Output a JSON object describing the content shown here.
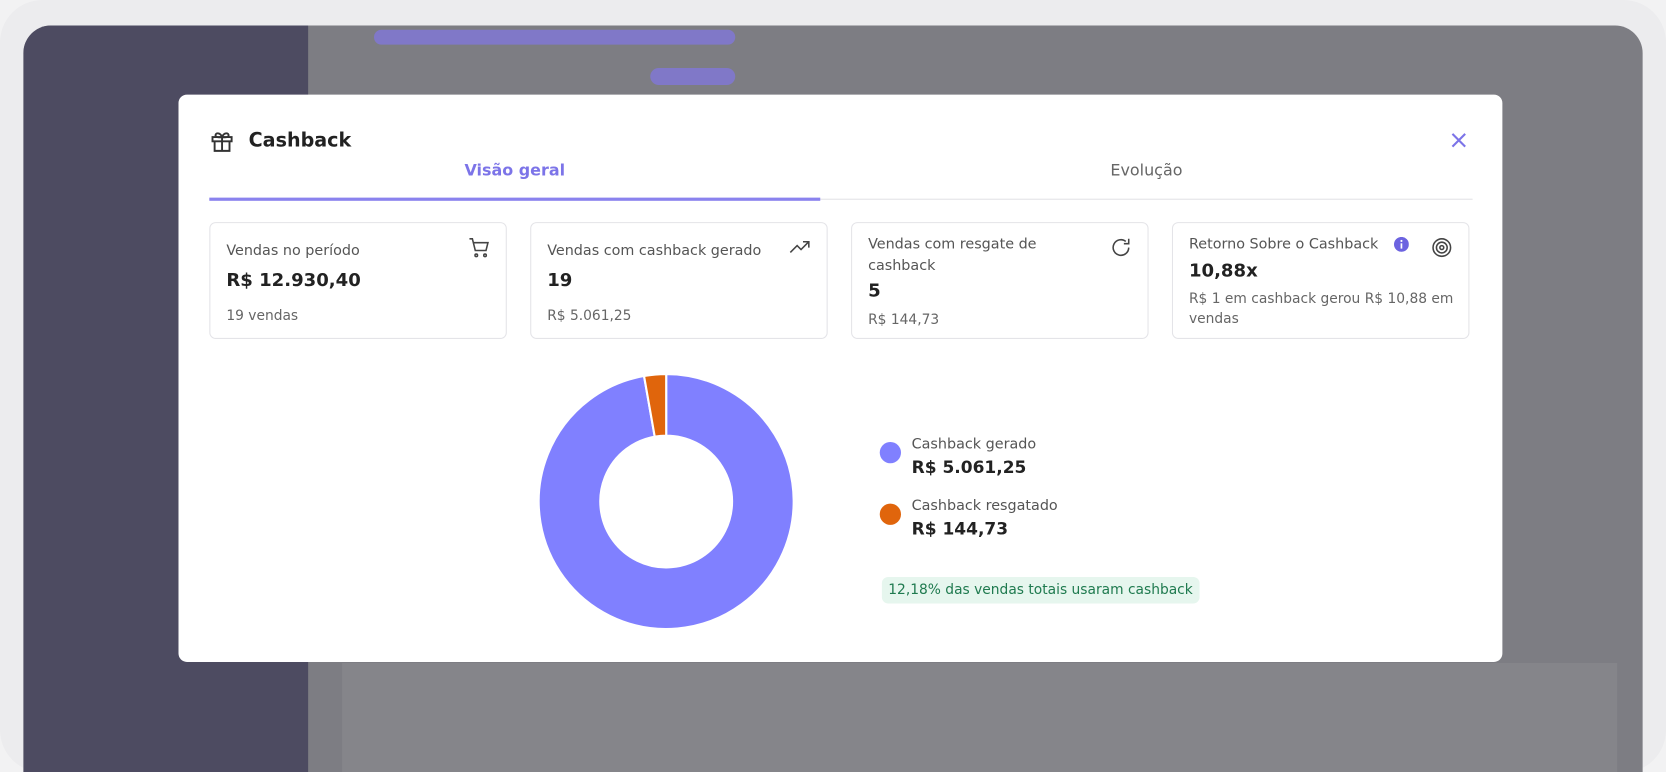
{
  "modal": {
    "title": "Cashback",
    "tabs": [
      "Visão geral",
      "Evolução"
    ]
  },
  "cards": [
    {
      "label": "Vendas no período",
      "value": "R$ 12.930,40",
      "note": "19 vendas"
    },
    {
      "label": "Vendas com cashback gerado",
      "value": "19",
      "note": "R$ 5.061,25"
    },
    {
      "label": "Vendas com resgate de cashback",
      "value": "5",
      "note": "R$ 144,73"
    },
    {
      "label": "Retorno Sobre o Cashback",
      "value": "10,88x",
      "note": "R$ 1 em cashback gerou R$ 10,88 em vendas"
    }
  ],
  "chart_data": {
    "type": "pie",
    "donut": true,
    "categories": [
      "Cashback gerado",
      "Cashback resgatado"
    ],
    "values": [
      5061.25,
      144.73
    ],
    "value_labels": [
      "R$ 5.061,25",
      "R$ 144,73"
    ],
    "colors": [
      "#8080ff",
      "#e0650c"
    ]
  },
  "badge": "12,18% das vendas totais usaram cashback"
}
